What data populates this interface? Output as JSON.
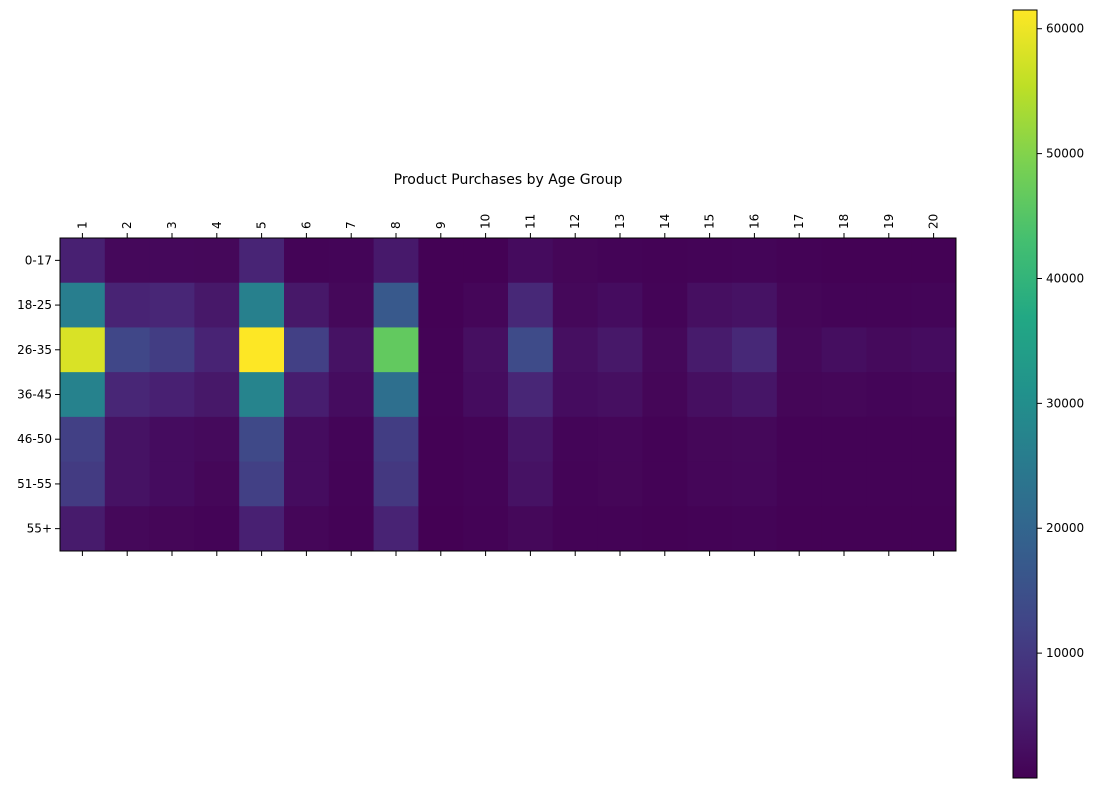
{
  "chart_data": {
    "type": "heatmap",
    "title": "Product Purchases by Age Group",
    "x_categories": [
      "1",
      "2",
      "3",
      "4",
      "5",
      "6",
      "7",
      "8",
      "9",
      "10",
      "11",
      "12",
      "13",
      "14",
      "15",
      "16",
      "17",
      "18",
      "19",
      "20"
    ],
    "y_categories": [
      "0-17",
      "18-25",
      "26-35",
      "36-45",
      "46-50",
      "51-55",
      "55+"
    ],
    "values": [
      [
        5500,
        1300,
        1300,
        1200,
        6200,
        500,
        700,
        4200,
        100,
        150,
        1800,
        800,
        600,
        400,
        600,
        700,
        300,
        200,
        250,
        200
      ],
      [
        26000,
        6000,
        6500,
        4000,
        26500,
        4000,
        1200,
        17000,
        200,
        900,
        7000,
        1200,
        2000,
        600,
        2500,
        3000,
        800,
        600,
        600,
        700
      ],
      [
        58000,
        13000,
        11000,
        6000,
        61500,
        11500,
        3000,
        46500,
        400,
        2500,
        14000,
        2500,
        4000,
        1200,
        4500,
        7000,
        1200,
        2200,
        1500,
        2000
      ],
      [
        27000,
        6500,
        5500,
        4000,
        27500,
        5000,
        2000,
        22500,
        300,
        2000,
        6500,
        2000,
        2500,
        800,
        2500,
        3500,
        800,
        1000,
        700,
        900
      ],
      [
        11500,
        3000,
        2000,
        1500,
        13500,
        2000,
        700,
        11000,
        100,
        600,
        3500,
        700,
        900,
        300,
        1000,
        1200,
        300,
        400,
        300,
        300
      ],
      [
        10500,
        3000,
        2000,
        1000,
        11500,
        2000,
        600,
        10000,
        100,
        500,
        3000,
        600,
        800,
        300,
        900,
        1100,
        300,
        400,
        300,
        300
      ],
      [
        4500,
        1200,
        800,
        500,
        5500,
        900,
        300,
        6000,
        50,
        300,
        1200,
        300,
        400,
        150,
        400,
        500,
        150,
        200,
        150,
        150
      ]
    ],
    "vmin": 0,
    "vmax": 61500,
    "colorbar_ticks": [
      10000,
      20000,
      30000,
      40000,
      50000,
      60000
    ],
    "colormap": "viridis",
    "x_tick_position": "top",
    "grid": false
  }
}
